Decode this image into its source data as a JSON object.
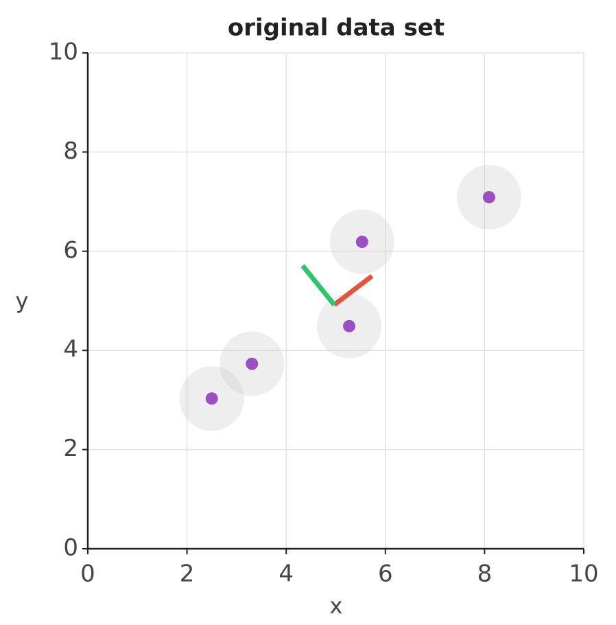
{
  "chart_data": {
    "type": "scatter",
    "title": "original data set",
    "x_label": "x",
    "y_label": "y",
    "xlim": [
      0,
      10
    ],
    "ylim": [
      0,
      10
    ],
    "xticks": [
      0,
      2,
      4,
      6,
      8,
      10
    ],
    "yticks": [
      0,
      2,
      4,
      6,
      8,
      10
    ],
    "grid": true,
    "series": [
      {
        "color": "#9b4fc0",
        "x": [
          2.5,
          3.31,
          5.27,
          5.53,
          8.09
        ],
        "values": [
          3.03,
          3.73,
          4.49,
          6.19,
          7.09
        ]
      }
    ],
    "vectors": [
      {
        "color": "#e5533b",
        "start": [
          4.97,
          4.92
        ],
        "end": [
          5.73,
          5.5
        ]
      },
      {
        "color": "#2fc46a",
        "start": [
          4.97,
          4.92
        ],
        "end": [
          4.33,
          5.71
        ]
      }
    ]
  }
}
